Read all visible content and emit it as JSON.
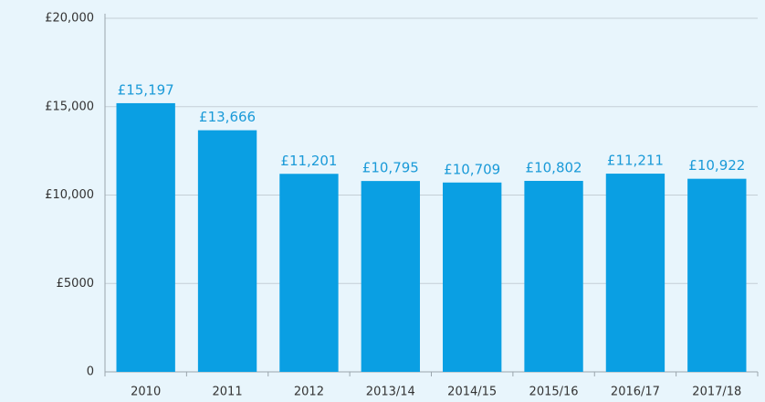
{
  "chart_data": {
    "type": "bar",
    "categories": [
      "2010",
      "2011",
      "2012",
      "2013/14",
      "2014/15",
      "2015/16",
      "2016/17",
      "2017/18"
    ],
    "values": [
      15197,
      13666,
      11201,
      10795,
      10709,
      10802,
      11211,
      10922
    ],
    "value_labels": [
      "£15,197",
      "£13,666",
      "£11,201",
      "£10,795",
      "£10,709",
      "£10,802",
      "£11,211",
      "£10,922"
    ],
    "color": "#0a9fe3",
    "ylim": [
      0,
      20000
    ],
    "yticks": [
      0,
      {
        "value": 5000,
        "label": "£5000"
      },
      {
        "value": 10000,
        "label": "£10,000"
      },
      {
        "value": 15000,
        "label": "£15,000"
      },
      {
        "value": 20000,
        "label": "£20,000"
      }
    ],
    "grid": true
  }
}
